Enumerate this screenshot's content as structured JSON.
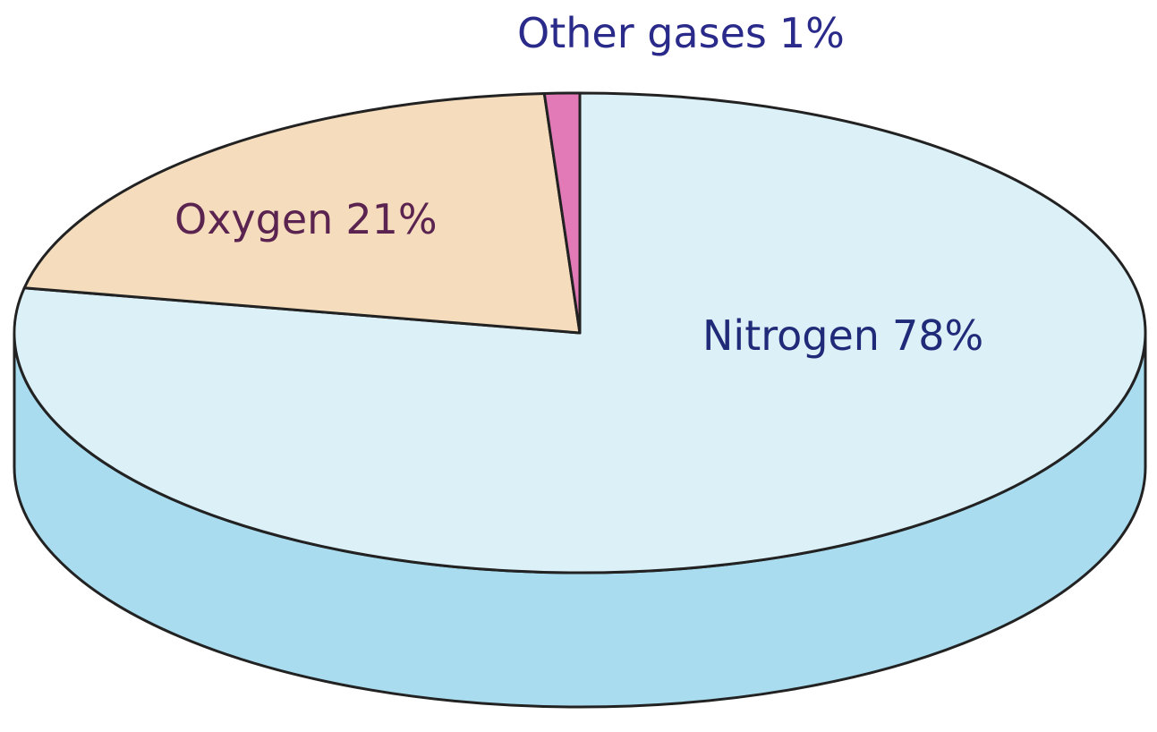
{
  "chart_data": {
    "type": "pie",
    "categories": [
      "Oxygen",
      "Nitrogen",
      "Other gases"
    ],
    "values": [
      21,
      78,
      1
    ],
    "value_labels": [
      "21%",
      "78%",
      "1%"
    ],
    "colors": [
      "#f4dcbc",
      "#dcf0f8",
      "#e27ab8"
    ],
    "start": "top",
    "direction": "clockwise",
    "order": [
      1,
      0,
      2
    ]
  }
}
